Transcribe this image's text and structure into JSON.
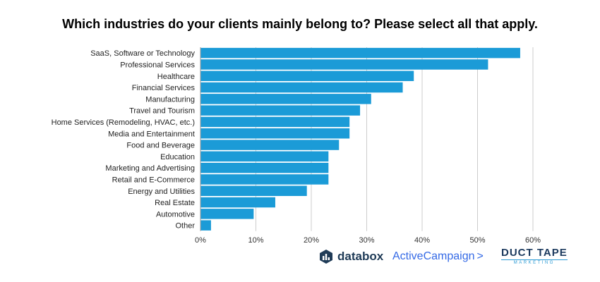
{
  "chart_data": {
    "type": "bar",
    "orientation": "horizontal",
    "title": "Which industries do your clients mainly belong to? Please select all that apply.",
    "categories": [
      "SaaS, Software or Technology",
      "Professional Services",
      "Healthcare",
      "Financial Services",
      "Manufacturing",
      "Travel and Tourism",
      "Home Services (Remodeling, HVAC, etc.)",
      "Media and Entertainment",
      "Food and Beverage",
      "Education",
      "Marketing and Advertising",
      "Retail and E-Commerce",
      "Energy and Utilities",
      "Real Estate",
      "Automotive",
      "Other"
    ],
    "values": [
      57.7,
      51.9,
      38.5,
      36.5,
      30.8,
      28.8,
      26.9,
      26.9,
      25.0,
      23.1,
      23.1,
      23.1,
      19.2,
      13.5,
      9.6,
      1.9
    ],
    "xlim": [
      0,
      60
    ],
    "xticks": [
      "0%",
      "10%",
      "20%",
      "30%",
      "40%",
      "50%",
      "60%"
    ],
    "grid": true,
    "bar_color": "#1b9bd7",
    "grid_color": "#cccccc"
  },
  "footer": {
    "databox": "databox",
    "activecampaign": "ActiveCampaign",
    "activecampaign_chevron": ">",
    "ducttape_main": "DUCT TAPE",
    "ducttape_sub": "MARKETING"
  }
}
